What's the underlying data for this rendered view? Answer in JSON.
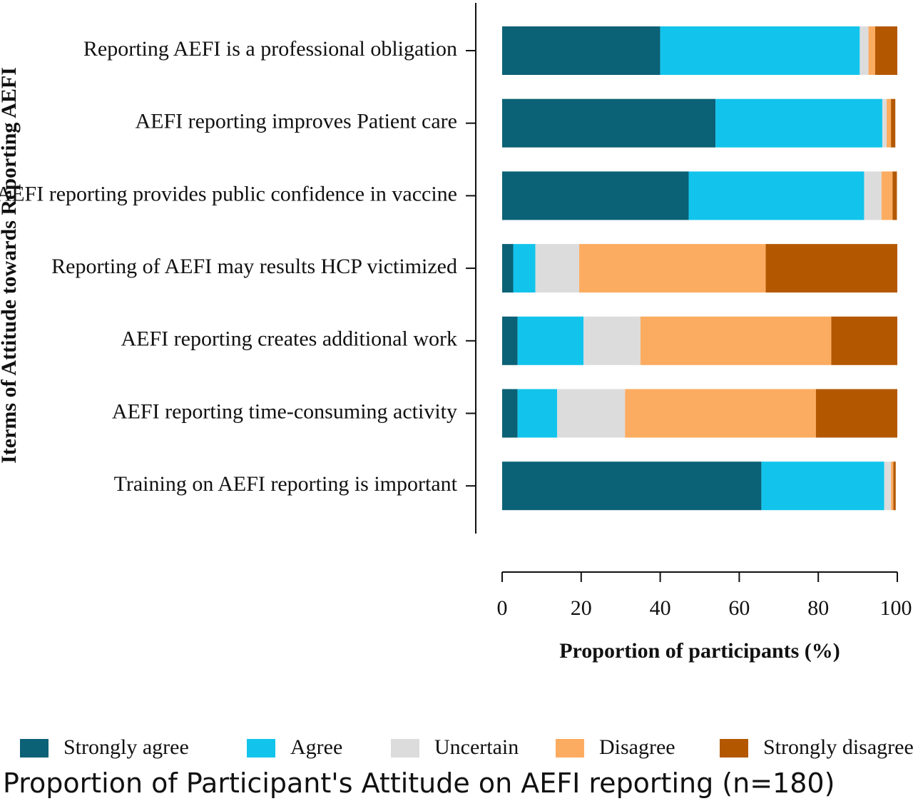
{
  "caption": "Proportion of Participant's Attitude on AEFI reporting (n=180)",
  "chart_data": {
    "type": "bar",
    "orientation": "horizontal",
    "stacked": true,
    "title": "",
    "xlabel": "Proportion of participants (%)",
    "ylabel": "Iterms of Attitude towards Reporting AEFI",
    "xlim": [
      0,
      100
    ],
    "xticks": [
      0,
      20,
      40,
      60,
      80,
      100
    ],
    "grid": false,
    "legend_position": "bottom",
    "categories": [
      "Reporting AEFI is a professional obligation",
      "AEFI reporting improves Patient care",
      "AEFI reporting provides public confidence in vaccine",
      "Reporting of AEFI may results HCP victimized",
      "AEFI reporting creates additional work",
      "AEFI reporting time-consuming activity",
      "Training on AEFI reporting is important"
    ],
    "series": [
      {
        "name": "Strongly agree",
        "color": "#0b6175",
        "values": [
          40.0,
          54.0,
          47.2,
          2.8,
          3.9,
          3.9,
          65.6
        ]
      },
      {
        "name": "Agree",
        "color": "#12c4ec",
        "values": [
          50.5,
          42.2,
          44.4,
          5.6,
          16.7,
          10.0,
          31.1
        ]
      },
      {
        "name": "Uncertain",
        "color": "#dcdcdc",
        "values": [
          2.2,
          1.1,
          4.4,
          11.1,
          14.4,
          17.2,
          1.7
        ]
      },
      {
        "name": "Disagree",
        "color": "#fcac60",
        "values": [
          1.7,
          1.1,
          2.8,
          47.2,
          48.3,
          48.3,
          0.6
        ]
      },
      {
        "name": "Strongly disagree",
        "color": "#b35800",
        "values": [
          5.6,
          1.1,
          1.1,
          33.3,
          16.7,
          20.6,
          0.6
        ]
      }
    ]
  }
}
